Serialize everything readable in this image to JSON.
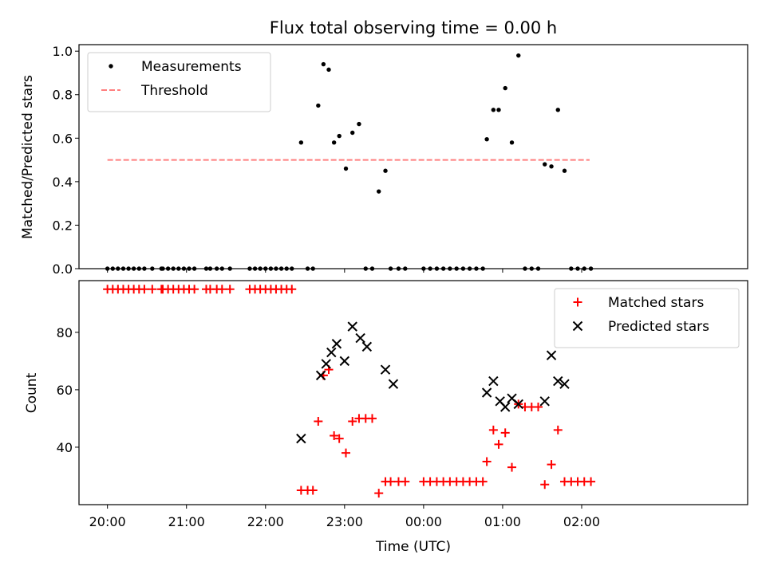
{
  "figure": {
    "title": "Flux total observing time = 0.00 h",
    "xlabel": "Time (UTC)"
  },
  "chart_data": [
    {
      "type": "scatter",
      "ylabel": "Matched/Predicted stars",
      "ylim": [
        0,
        1.03
      ],
      "yticks": [
        "0.0",
        "0.2",
        "0.4",
        "0.6",
        "0.8",
        "1.0"
      ],
      "xlim": [
        -0.36,
        8.1
      ],
      "grid": false,
      "legend": "top-left",
      "series": [
        {
          "name": "Measurements",
          "marker": "dot",
          "color": "#000000",
          "x": [
            0,
            0.067,
            0.133,
            0.2,
            0.267,
            0.333,
            0.4,
            0.467,
            0.567,
            0.683,
            0.7,
            0.767,
            0.833,
            0.9,
            0.967,
            1.033,
            1.1,
            1.25,
            1.3,
            1.383,
            1.45,
            1.55,
            1.8,
            1.867,
            1.933,
            2.0,
            2.067,
            2.133,
            2.2,
            2.267,
            2.333,
            2.45,
            2.533,
            2.6,
            2.667,
            2.733,
            2.8,
            2.867,
            2.933,
            3.017,
            3.1,
            3.183,
            3.267,
            3.35,
            3.433,
            3.517,
            3.583,
            3.683,
            3.767,
            4.0,
            4.083,
            4.167,
            4.25,
            4.333,
            4.417,
            4.5,
            4.583,
            4.667,
            4.75,
            4.8,
            4.883,
            4.95,
            5.033,
            5.117,
            5.2,
            5.283,
            5.367,
            5.45,
            5.533,
            5.617,
            5.7,
            5.783,
            5.867,
            5.95,
            6.033,
            6.117
          ],
          "y": [
            0,
            0,
            0,
            0,
            0,
            0,
            0,
            0,
            0,
            0,
            0,
            0,
            0,
            0,
            0,
            0,
            0,
            0,
            0,
            0,
            0,
            0,
            0,
            0,
            0,
            0,
            0,
            0,
            0,
            0,
            0,
            0.58,
            0,
            0,
            0.75,
            0.94,
            0.915,
            0.58,
            0.61,
            0.46,
            0.625,
            0.665,
            0,
            0,
            0.355,
            0.45,
            0,
            0,
            0,
            0,
            0,
            0,
            0,
            0,
            0,
            0,
            0,
            0,
            0,
            0.595,
            0.73,
            0.73,
            0.83,
            0.58,
            0.98,
            0,
            0,
            0,
            0.48,
            0.47,
            0.73,
            0.45,
            0,
            0,
            0,
            0
          ]
        },
        {
          "name": "Threshold",
          "marker": "dashed-line",
          "color": "#ff7f7f",
          "x": [
            0,
            6.1
          ],
          "y": [
            0.5,
            0.5
          ]
        }
      ]
    },
    {
      "type": "scatter",
      "ylabel": "Count",
      "ylim": [
        20,
        98
      ],
      "yticks": [
        "40",
        "60",
        "80"
      ],
      "xlim": [
        -0.36,
        8.1
      ],
      "xticks": [
        "20:00",
        "21:00",
        "22:00",
        "23:00",
        "00:00",
        "01:00",
        "02:00"
      ],
      "grid": false,
      "legend": "top-right",
      "series": [
        {
          "name": "Matched stars",
          "marker": "plus",
          "color": "#ff0000",
          "x": [
            0,
            0.067,
            0.133,
            0.2,
            0.267,
            0.333,
            0.4,
            0.467,
            0.567,
            0.683,
            0.7,
            0.767,
            0.833,
            0.9,
            0.967,
            1.033,
            1.1,
            1.25,
            1.3,
            1.383,
            1.45,
            1.55,
            1.8,
            1.867,
            1.933,
            2.0,
            2.067,
            2.133,
            2.2,
            2.267,
            2.333,
            2.45,
            2.533,
            2.6,
            2.667,
            2.733,
            2.8,
            2.867,
            2.933,
            3.017,
            3.1,
            3.183,
            3.267,
            3.35,
            3.433,
            3.517,
            3.583,
            3.683,
            3.767,
            4.0,
            4.083,
            4.167,
            4.25,
            4.333,
            4.417,
            4.5,
            4.583,
            4.667,
            4.75,
            4.8,
            4.883,
            4.95,
            5.033,
            5.117,
            5.2,
            5.283,
            5.367,
            5.45,
            5.533,
            5.617,
            5.7,
            5.783,
            5.867,
            5.95,
            6.033,
            6.117
          ],
          "y": [
            95,
            95,
            95,
            95,
            95,
            95,
            95,
            95,
            95,
            95,
            95,
            95,
            95,
            95,
            95,
            95,
            95,
            95,
            95,
            95,
            95,
            95,
            95,
            95,
            95,
            95,
            95,
            95,
            95,
            95,
            95,
            25,
            25,
            25,
            49,
            65,
            67,
            44,
            43,
            38,
            49,
            50,
            50,
            50,
            24,
            28,
            28,
            28,
            28,
            28,
            28,
            28,
            28,
            28,
            28,
            28,
            28,
            28,
            28,
            35,
            46,
            41,
            45,
            33,
            55,
            54,
            54,
            54,
            27,
            34,
            46,
            28,
            28,
            28,
            28,
            28
          ]
        },
        {
          "name": "Predicted stars",
          "marker": "x",
          "color": "#000000",
          "x": [
            2.45,
            2.7,
            2.767,
            2.833,
            2.9,
            3.0,
            3.1,
            3.2,
            3.283,
            3.517,
            3.617,
            4.8,
            4.883,
            4.967,
            5.033,
            5.117,
            5.2,
            5.533,
            5.617,
            5.7,
            5.783
          ],
          "y": [
            43,
            65,
            69,
            73,
            76,
            70,
            82,
            78,
            75,
            67,
            62,
            59,
            63,
            56,
            54,
            57,
            55,
            56,
            72,
            63,
            62
          ]
        }
      ]
    }
  ]
}
